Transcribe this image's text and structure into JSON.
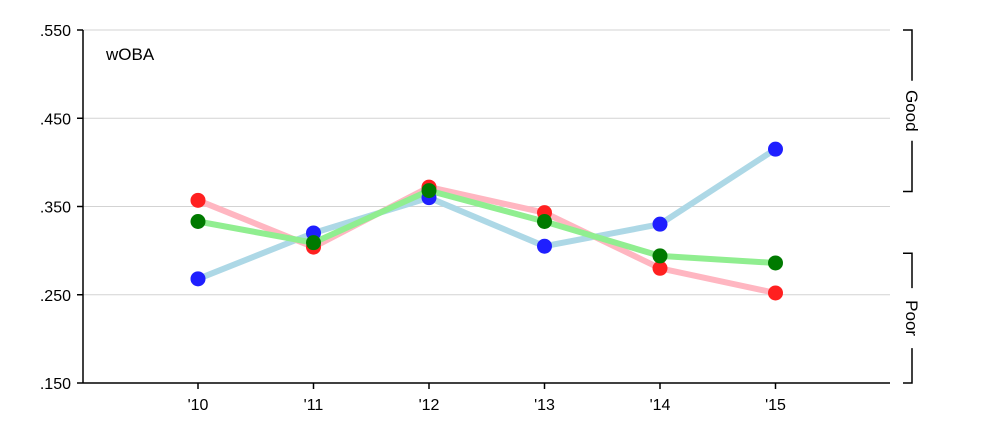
{
  "chart_data": {
    "type": "line",
    "annotation": "wOBA",
    "categories": [
      "'10",
      "'11",
      "'12",
      "'13",
      "'14",
      "'15"
    ],
    "yticks": [
      ".550",
      ".450",
      ".350",
      ".250",
      ".150"
    ],
    "ytick_values": [
      0.55,
      0.45,
      0.35,
      0.25,
      0.15
    ],
    "ylim": [
      0.15,
      0.55
    ],
    "grid": true,
    "series": [
      {
        "values": [
          0.268,
          0.32,
          0.36,
          0.305,
          0.33,
          0.415
        ],
        "line_color": "#add8e6",
        "marker_color": "#1f1fff"
      },
      {
        "values": [
          0.357,
          0.304,
          0.372,
          0.343,
          0.28,
          0.252
        ],
        "line_color": "#ffb6c1",
        "marker_color": "#ff2020"
      },
      {
        "values": [
          0.333,
          0.309,
          0.368,
          0.333,
          0.294,
          0.286
        ],
        "line_color": "#90ee90",
        "marker_color": "#007a00"
      }
    ],
    "brackets": [
      {
        "label": "Good",
        "range": [
          0.367,
          0.55
        ]
      },
      {
        "label": "Poor",
        "range": [
          0.15,
          0.297
        ]
      }
    ]
  }
}
